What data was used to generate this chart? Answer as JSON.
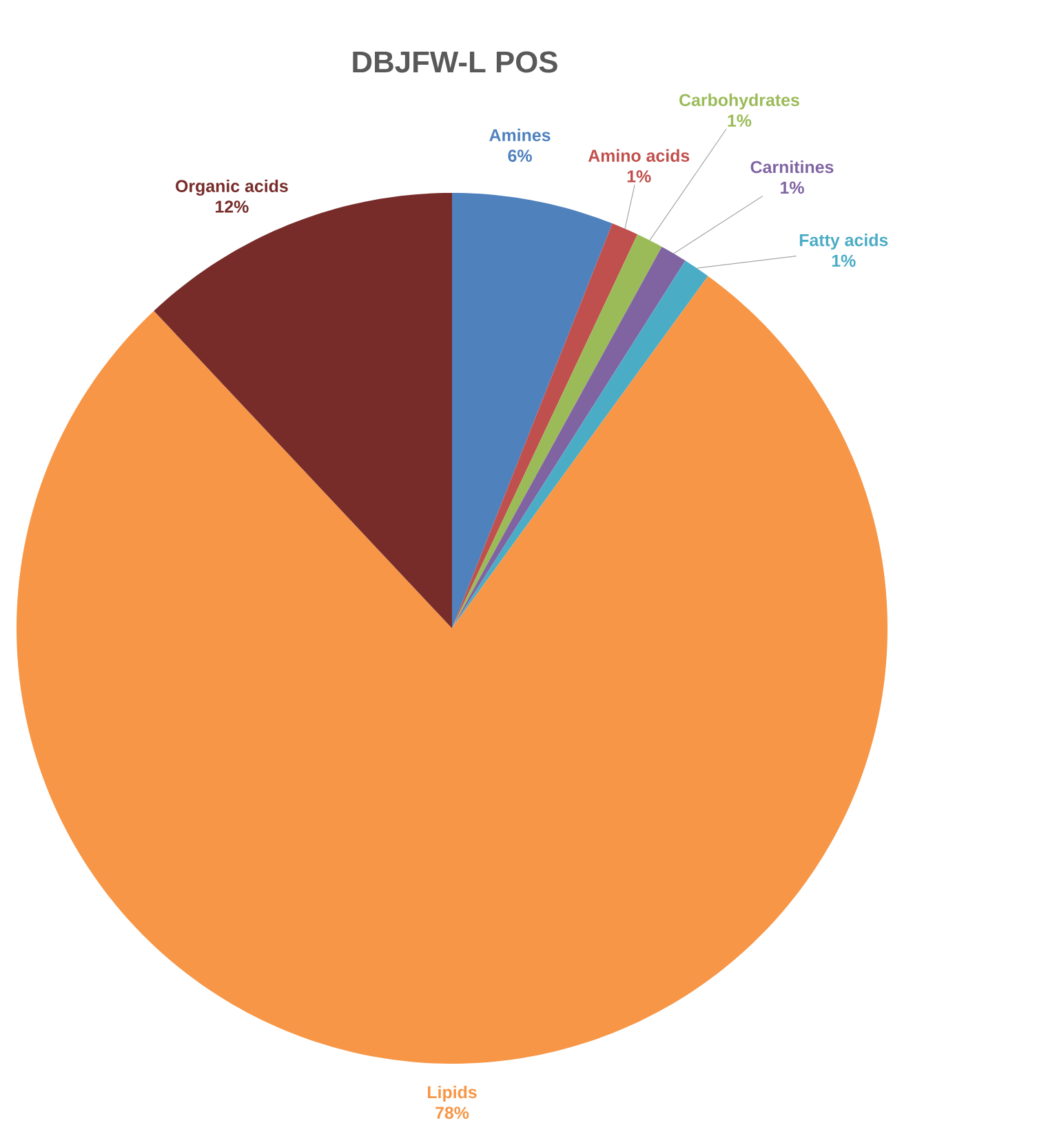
{
  "chart_data": {
    "type": "pie",
    "title": "DBJFW-L POS",
    "categories": [
      "Amines",
      "Amino acids",
      "Carbohydrates",
      "Carnitines",
      "Fatty acids",
      "Lipids",
      "Organic acids"
    ],
    "values": [
      6,
      1,
      1,
      1,
      1,
      78,
      12
    ],
    "value_labels": [
      "6%",
      "1%",
      "1%",
      "1%",
      "1%",
      "78%",
      "12%"
    ],
    "colors": [
      "#4f81bd",
      "#c0504d",
      "#9bbb59",
      "#8064a2",
      "#4bacc6",
      "#f79646",
      "#772c2a"
    ]
  }
}
